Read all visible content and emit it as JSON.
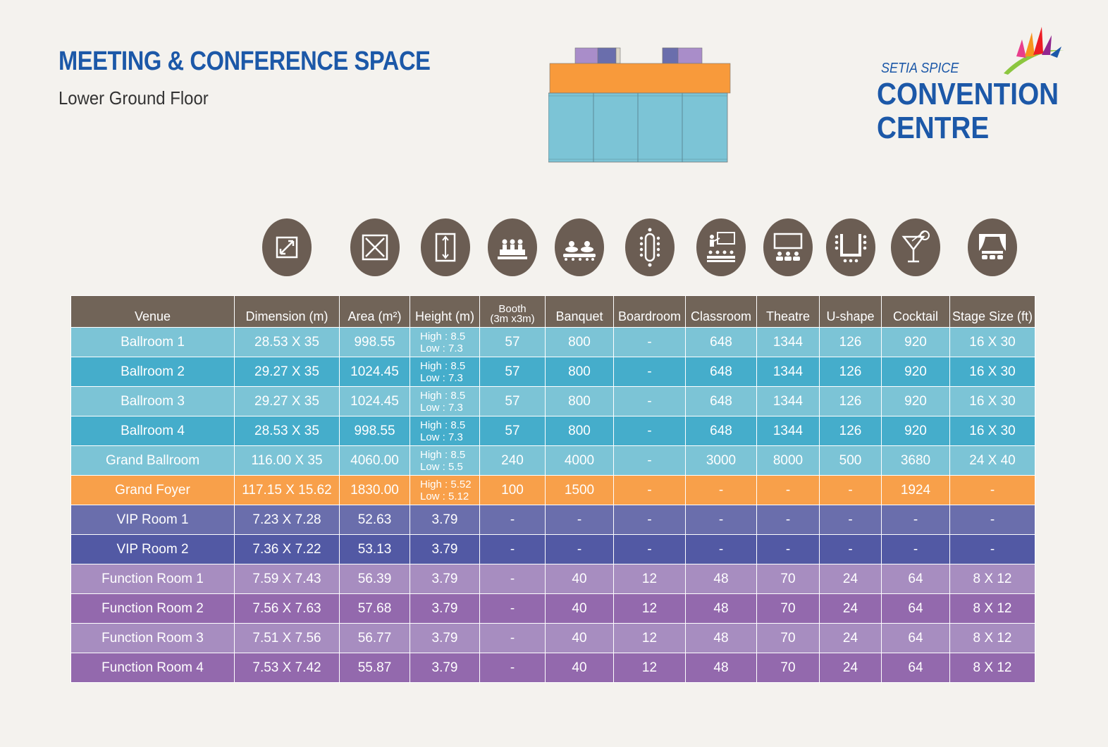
{
  "header": {
    "title": "MEETING & CONFERENCE SPACE",
    "subtitle": "Lower Ground Floor"
  },
  "logo": {
    "small": "SETIA SPICE",
    "line1": "CONVENTION",
    "line2": "CENTRE"
  },
  "colors": {
    "brand_blue": "#1c58a8",
    "header_brown": "#716458",
    "icon_brown": "#6b5d53",
    "ballroom_light": "#7cc4d6",
    "ballroom_dark": "#45adcb",
    "foyer_orange": "#f8a04a",
    "vip_1": "#6a6eac",
    "vip_2": "#5259a4",
    "function_light": "#a78dc0",
    "function_dark": "#9369ad"
  },
  "icons": [
    "dimension-icon",
    "area-icon",
    "height-icon",
    "booth-icon",
    "banquet-icon",
    "boardroom-icon",
    "classroom-icon",
    "theatre-icon",
    "u-shape-icon",
    "cocktail-icon",
    "stage-icon"
  ],
  "table": {
    "headers": {
      "venue": "Venue",
      "dimension": "Dimension (m)",
      "area": "Area (m²)",
      "height": "Height (m)",
      "booth_1": "Booth",
      "booth_2": "(3m x3m)",
      "banquet": "Banquet",
      "boardroom": "Boardroom",
      "classroom": "Classroom",
      "theatre": "Theatre",
      "ushape": "U-shape",
      "cocktail": "Cocktail",
      "stage": "Stage Size (ft)"
    },
    "rows": [
      {
        "venue": "Ballroom 1",
        "dimension": "28.53 X 35",
        "area": "998.55",
        "height_high": "High : 8.5",
        "height_low": "Low : 7.3",
        "booth": "57",
        "banquet": "800",
        "boardroom": "-",
        "classroom": "648",
        "theatre": "1344",
        "ushape": "126",
        "cocktail": "920",
        "stage": "16 X 30"
      },
      {
        "venue": "Ballroom 2",
        "dimension": "29.27 X 35",
        "area": "1024.45",
        "height_high": "High : 8.5",
        "height_low": "Low : 7.3",
        "booth": "57",
        "banquet": "800",
        "boardroom": "-",
        "classroom": "648",
        "theatre": "1344",
        "ushape": "126",
        "cocktail": "920",
        "stage": "16 X 30"
      },
      {
        "venue": "Ballroom 3",
        "dimension": "29.27 X 35",
        "area": "1024.45",
        "height_high": "High : 8.5",
        "height_low": "Low : 7.3",
        "booth": "57",
        "banquet": "800",
        "boardroom": "-",
        "classroom": "648",
        "theatre": "1344",
        "ushape": "126",
        "cocktail": "920",
        "stage": "16 X 30"
      },
      {
        "venue": "Ballroom 4",
        "dimension": "28.53 X 35",
        "area": "998.55",
        "height_high": "High : 8.5",
        "height_low": "Low : 7.3",
        "booth": "57",
        "banquet": "800",
        "boardroom": "-",
        "classroom": "648",
        "theatre": "1344",
        "ushape": "126",
        "cocktail": "920",
        "stage": "16 X 30"
      },
      {
        "venue": "Grand Ballroom",
        "dimension": "116.00 X 35",
        "area": "4060.00",
        "height_high": "High : 8.5",
        "height_low": "Low : 5.5",
        "booth": "240",
        "banquet": "4000",
        "boardroom": "-",
        "classroom": "3000",
        "theatre": "8000",
        "ushape": "500",
        "cocktail": "3680",
        "stage": "24 X 40"
      },
      {
        "venue": "Grand Foyer",
        "dimension": "117.15 X 15.62",
        "area": "1830.00",
        "height_high": "High : 5.52",
        "height_low": "Low : 5.12",
        "booth": "100",
        "banquet": "1500",
        "boardroom": "-",
        "classroom": "-",
        "theatre": "-",
        "ushape": "-",
        "cocktail": "1924",
        "stage": "-"
      },
      {
        "venue": "VIP Room 1",
        "dimension": "7.23 X 7.28",
        "area": "52.63",
        "height": "3.79",
        "booth": "-",
        "banquet": "-",
        "boardroom": "-",
        "classroom": "-",
        "theatre": "-",
        "ushape": "-",
        "cocktail": "-",
        "stage": "-"
      },
      {
        "venue": "VIP Room 2",
        "dimension": "7.36 X 7.22",
        "area": "53.13",
        "height": "3.79",
        "booth": "-",
        "banquet": "-",
        "boardroom": "-",
        "classroom": "-",
        "theatre": "-",
        "ushape": "-",
        "cocktail": "-",
        "stage": "-"
      },
      {
        "venue": "Function Room 1",
        "dimension": "7.59 X 7.43",
        "area": "56.39",
        "height": "3.79",
        "booth": "-",
        "banquet": "40",
        "boardroom": "12",
        "classroom": "48",
        "theatre": "70",
        "ushape": "24",
        "cocktail": "64",
        "stage": "8 X 12"
      },
      {
        "venue": "Function Room 2",
        "dimension": "7.56 X 7.63",
        "area": "57.68",
        "height": "3.79",
        "booth": "-",
        "banquet": "40",
        "boardroom": "12",
        "classroom": "48",
        "theatre": "70",
        "ushape": "24",
        "cocktail": "64",
        "stage": "8 X 12"
      },
      {
        "venue": "Function Room 3",
        "dimension": "7.51 X 7.56",
        "area": "56.77",
        "height": "3.79",
        "booth": "-",
        "banquet": "40",
        "boardroom": "12",
        "classroom": "48",
        "theatre": "70",
        "ushape": "24",
        "cocktail": "64",
        "stage": "8 X 12"
      },
      {
        "venue": "Function Room 4",
        "dimension": "7.53 X 7.42",
        "area": "55.87",
        "height": "3.79",
        "booth": "-",
        "banquet": "40",
        "boardroom": "12",
        "classroom": "48",
        "theatre": "70",
        "ushape": "24",
        "cocktail": "64",
        "stage": "8 X 12"
      }
    ]
  }
}
